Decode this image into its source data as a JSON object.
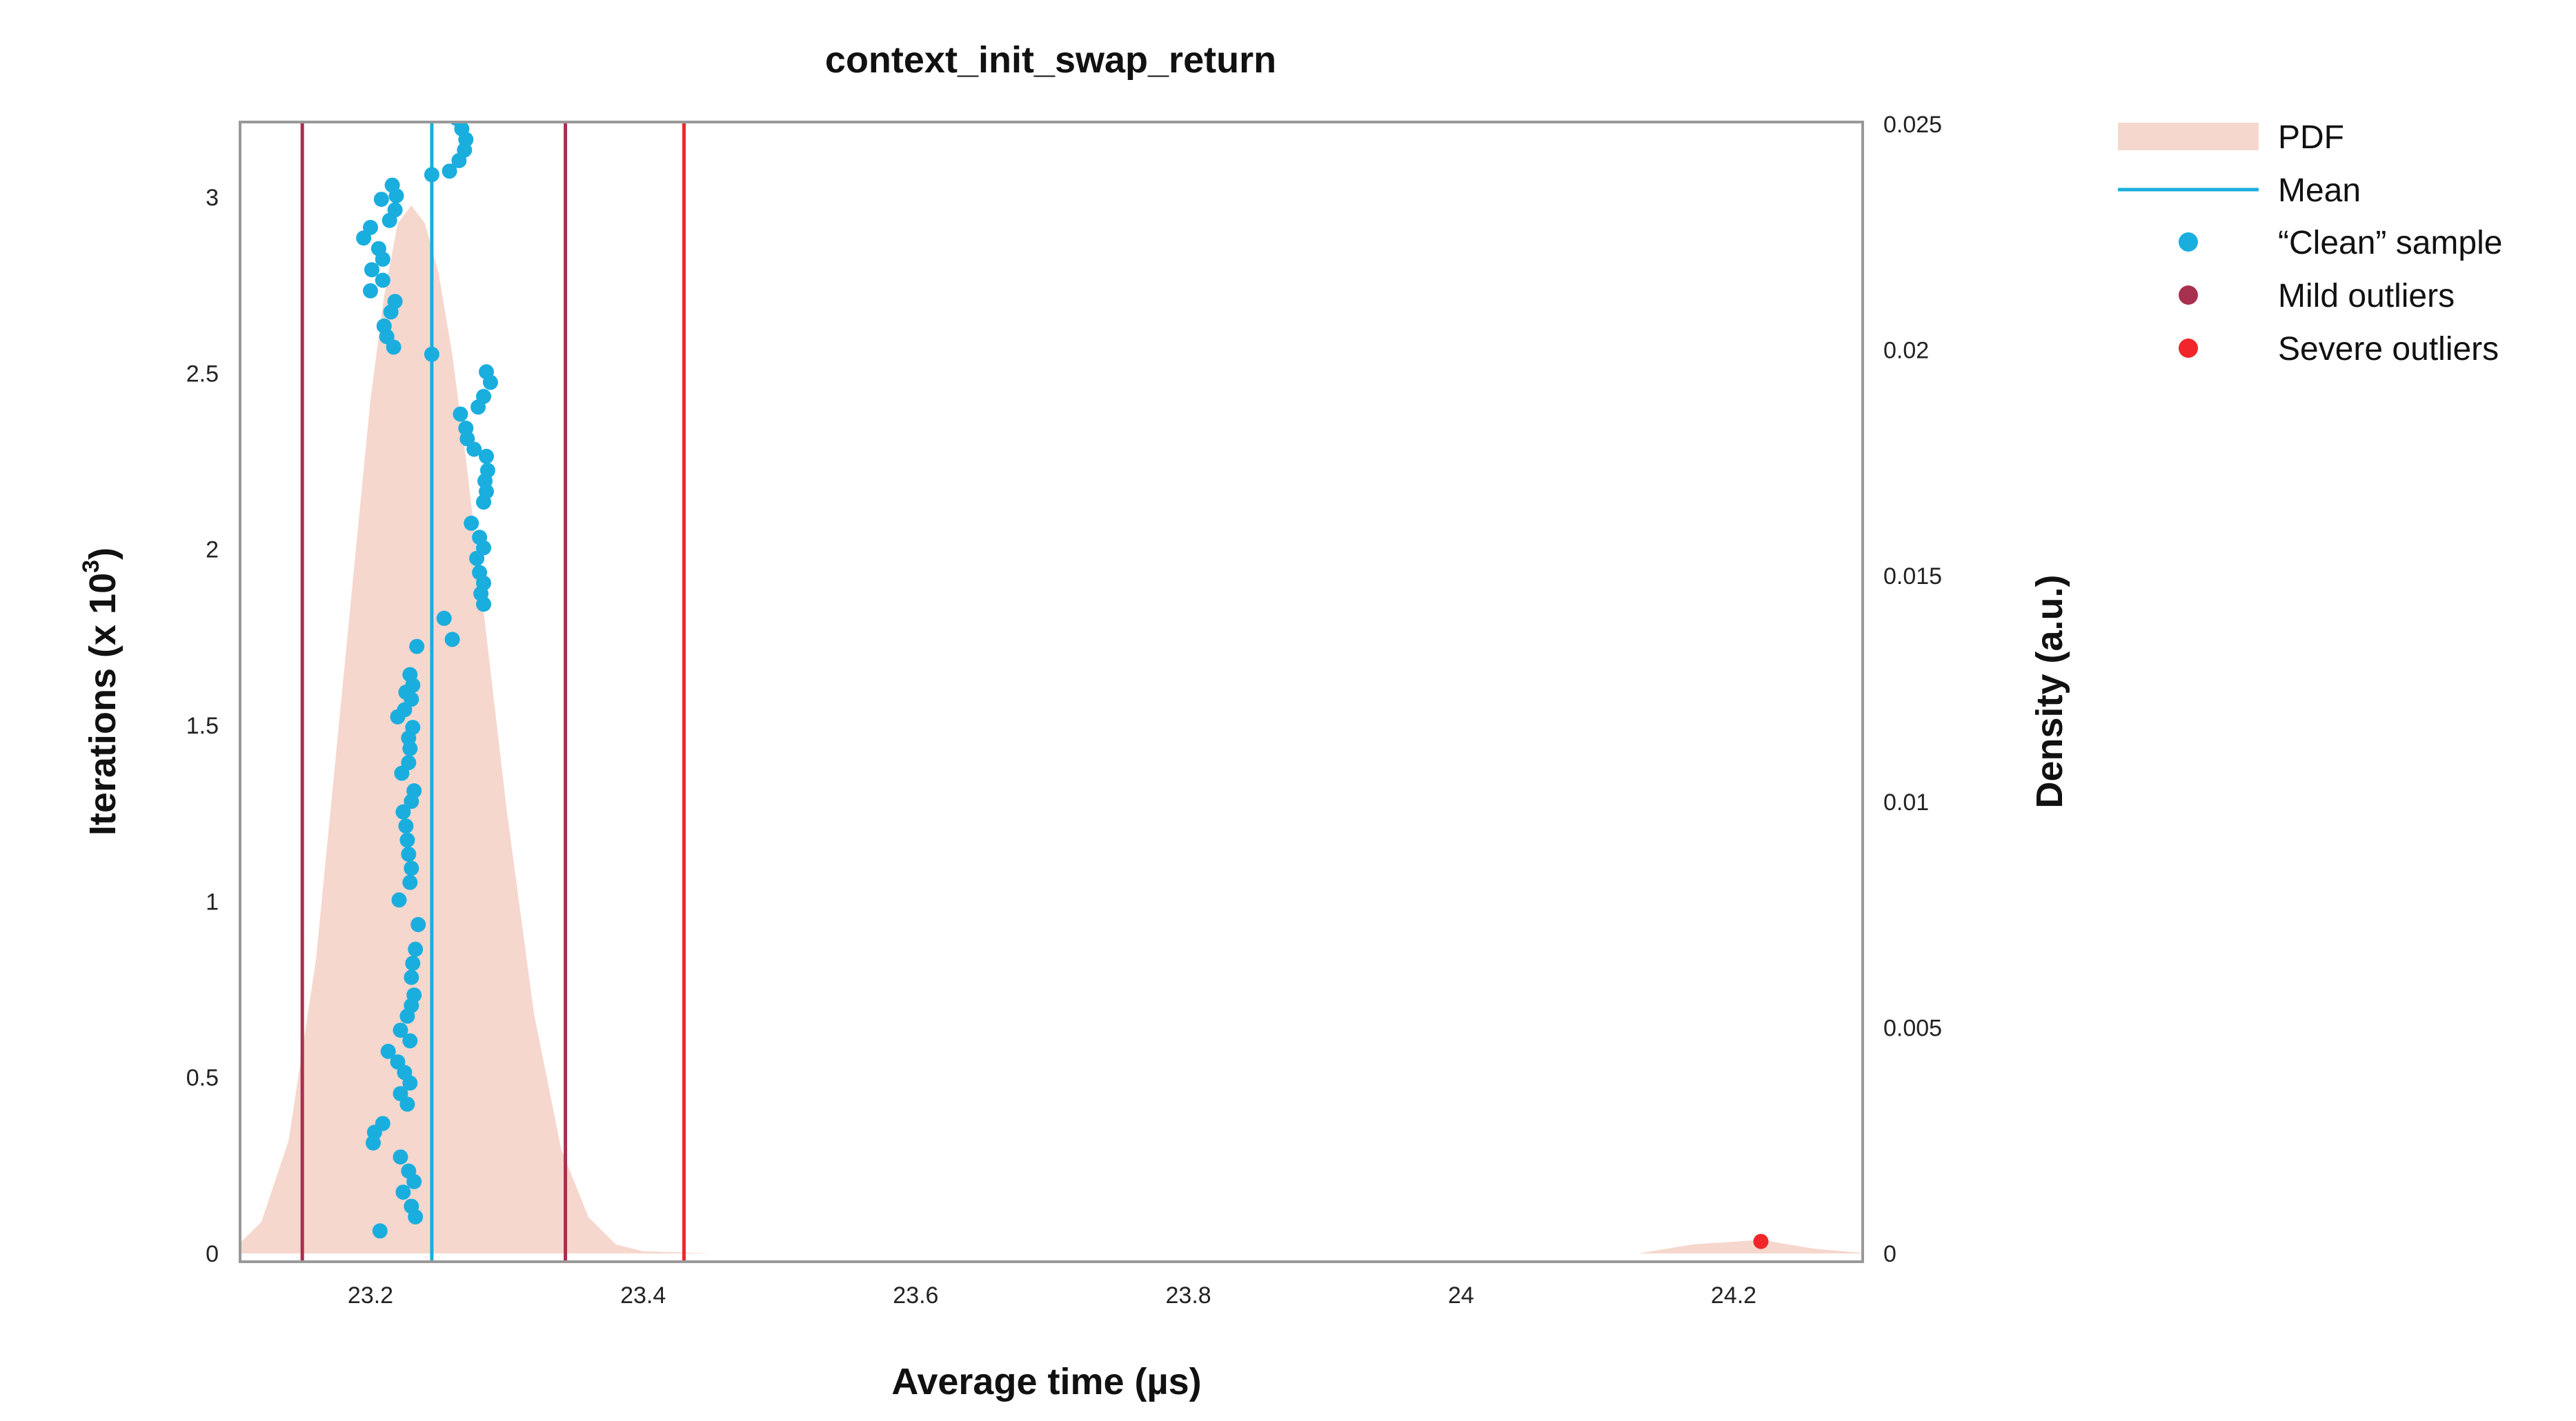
{
  "chart_data": {
    "type": "scatter",
    "title": "context_init_swap_return",
    "xlabel": "Average time (µs)",
    "ylabel_left": "Iterations (x 10",
    "ylabel_left_exp": "3",
    "ylabel_left_close": ")",
    "ylabel_right": "Density (a.u.)",
    "xlim": [
      23.1,
      24.3
    ],
    "ylim_left": [
      0,
      3.24
    ],
    "ylim_right": [
      0,
      0.025
    ],
    "x_ticks": [
      23.2,
      23.4,
      23.6,
      23.8,
      24.0,
      24.2
    ],
    "x_tick_labels": [
      "23.2",
      "23.4",
      "23.6",
      "23.8",
      "24",
      "24.2"
    ],
    "y_left_ticks": [
      0,
      0.5,
      1,
      1.5,
      2,
      2.5,
      3
    ],
    "y_left_tick_labels": [
      "0",
      "0.5",
      "1",
      "1.5",
      "2",
      "2.5",
      "3"
    ],
    "y_right_ticks": [
      0,
      0.005,
      0.01,
      0.015,
      0.02,
      0.025
    ],
    "y_right_tick_labels": [
      "0",
      "0.005",
      "0.01",
      "0.015",
      "0.02",
      "0.025"
    ],
    "mean": 23.245,
    "mild_outlier_bounds": [
      23.15,
      23.343
    ],
    "severe_outlier_bound": 23.43,
    "pdf": {
      "x": [
        23.1,
        23.12,
        23.14,
        23.16,
        23.18,
        23.2,
        23.21,
        23.22,
        23.23,
        23.24,
        23.25,
        23.26,
        23.27,
        23.28,
        23.29,
        23.3,
        23.32,
        23.34,
        23.36,
        23.38,
        23.4,
        23.45,
        24.13,
        24.17,
        24.22,
        24.26,
        24.3
      ],
      "density": [
        0.0001,
        0.0007,
        0.0025,
        0.0065,
        0.0127,
        0.0189,
        0.0212,
        0.0228,
        0.0232,
        0.0228,
        0.0217,
        0.0199,
        0.0176,
        0.015,
        0.0124,
        0.0098,
        0.0053,
        0.0023,
        0.0008,
        0.0002,
        5e-05,
        0.0,
        0.0,
        0.0002,
        0.0003,
        0.0001,
        0.0
      ]
    },
    "series": [
      {
        "name": "“Clean” sample",
        "color": "#1aaede",
        "points": [
          [
            23.207,
            0.064
          ],
          [
            23.233,
            0.104
          ],
          [
            23.23,
            0.134
          ],
          [
            23.224,
            0.174
          ],
          [
            23.232,
            0.204
          ],
          [
            23.228,
            0.234
          ],
          [
            23.222,
            0.274
          ],
          [
            23.202,
            0.314
          ],
          [
            23.203,
            0.344
          ],
          [
            23.209,
            0.369
          ],
          [
            23.227,
            0.424
          ],
          [
            23.222,
            0.454
          ],
          [
            23.229,
            0.484
          ],
          [
            23.225,
            0.514
          ],
          [
            23.22,
            0.544
          ],
          [
            23.213,
            0.574
          ],
          [
            23.229,
            0.604
          ],
          [
            23.222,
            0.634
          ],
          [
            23.227,
            0.674
          ],
          [
            23.23,
            0.704
          ],
          [
            23.232,
            0.734
          ],
          [
            23.23,
            0.784
          ],
          [
            23.231,
            0.824
          ],
          [
            23.233,
            0.864
          ],
          [
            23.235,
            0.934
          ],
          [
            23.221,
            1.004
          ],
          [
            23.229,
            1.054
          ],
          [
            23.23,
            1.094
          ],
          [
            23.228,
            1.134
          ],
          [
            23.227,
            1.174
          ],
          [
            23.226,
            1.214
          ],
          [
            23.224,
            1.254
          ],
          [
            23.23,
            1.284
          ],
          [
            23.232,
            1.314
          ],
          [
            23.223,
            1.364
          ],
          [
            23.228,
            1.394
          ],
          [
            23.229,
            1.434
          ],
          [
            23.228,
            1.464
          ],
          [
            23.231,
            1.494
          ],
          [
            23.22,
            1.524
          ],
          [
            23.225,
            1.544
          ],
          [
            23.23,
            1.574
          ],
          [
            23.226,
            1.594
          ],
          [
            23.231,
            1.614
          ],
          [
            23.229,
            1.644
          ],
          [
            23.234,
            1.724
          ],
          [
            23.26,
            1.744
          ],
          [
            23.254,
            1.804
          ],
          [
            23.283,
            1.844
          ],
          [
            23.281,
            1.874
          ],
          [
            23.283,
            1.904
          ],
          [
            23.28,
            1.934
          ],
          [
            23.278,
            1.974
          ],
          [
            23.283,
            2.004
          ],
          [
            23.28,
            2.034
          ],
          [
            23.274,
            2.074
          ],
          [
            23.283,
            2.134
          ],
          [
            23.285,
            2.164
          ],
          [
            23.284,
            2.194
          ],
          [
            23.286,
            2.224
          ],
          [
            23.285,
            2.264
          ],
          [
            23.276,
            2.284
          ],
          [
            23.271,
            2.314
          ],
          [
            23.27,
            2.344
          ],
          [
            23.266,
            2.384
          ],
          [
            23.279,
            2.404
          ],
          [
            23.283,
            2.434
          ],
          [
            23.288,
            2.474
          ],
          [
            23.285,
            2.504
          ],
          [
            23.245,
            2.554
          ],
          [
            23.217,
            2.574
          ],
          [
            23.212,
            2.604
          ],
          [
            23.21,
            2.634
          ],
          [
            23.215,
            2.674
          ],
          [
            23.218,
            2.704
          ],
          [
            23.2,
            2.734
          ],
          [
            23.209,
            2.764
          ],
          [
            23.201,
            2.794
          ],
          [
            23.209,
            2.824
          ],
          [
            23.206,
            2.854
          ],
          [
            23.195,
            2.884
          ],
          [
            23.2,
            2.914
          ],
          [
            23.214,
            2.934
          ],
          [
            23.218,
            2.964
          ],
          [
            23.208,
            2.994
          ],
          [
            23.219,
            3.004
          ],
          [
            23.216,
            3.034
          ],
          [
            23.245,
            3.064
          ],
          [
            23.258,
            3.074
          ],
          [
            23.265,
            3.104
          ],
          [
            23.269,
            3.134
          ],
          [
            23.27,
            3.164
          ],
          [
            23.267,
            3.194
          ],
          [
            23.263,
            3.224
          ]
        ]
      },
      {
        "name": "Mild outliers",
        "color": "#a8304f",
        "points": []
      },
      {
        "name": "Severe outliers",
        "color": "#f0262a",
        "points": [
          [
            24.22,
            0.034
          ]
        ]
      }
    ],
    "legend": {
      "placement": "right",
      "entries": [
        {
          "label": "PDF",
          "kind": "area",
          "color": "#f6d7cd"
        },
        {
          "label": "Mean",
          "kind": "line",
          "color": "#1aaede"
        },
        {
          "label": "“Clean” sample",
          "kind": "dot",
          "color": "#1aaede"
        },
        {
          "label": "Mild outliers",
          "kind": "dot",
          "color": "#a8304f"
        },
        {
          "label": "Severe outliers",
          "kind": "dot",
          "color": "#f0262a"
        }
      ]
    },
    "colors": {
      "pdf_fill": "#f6d7cd",
      "mean": "#1aaede",
      "mild": "#a8304f",
      "severe": "#f0262a",
      "frame": "#999999"
    },
    "grid": false
  }
}
